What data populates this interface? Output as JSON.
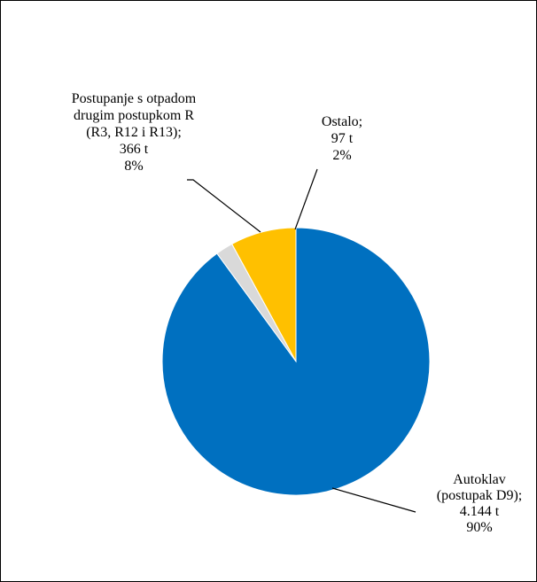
{
  "chart_data": {
    "type": "pie",
    "title": "",
    "slices": [
      {
        "label_lines": [
          "Autoklav",
          "(postupak D9);",
          "4.144 t",
          "90%"
        ],
        "value": 4144,
        "percent": 90,
        "color": "#0070c0"
      },
      {
        "label_lines": [
          "Ostalo;",
          "97 t",
          "2%"
        ],
        "value": 97,
        "percent": 2,
        "color": "#d9d9d9"
      },
      {
        "label_lines": [
          "Postupanje s otpadom",
          "drugim postupkom R",
          "(R3, R12 i R13);",
          "366 t",
          "8%"
        ],
        "value": 366,
        "percent": 8,
        "color": "#ffc000"
      }
    ],
    "legend": "none",
    "start_angle_deg": 0,
    "direction": "clockwise"
  }
}
